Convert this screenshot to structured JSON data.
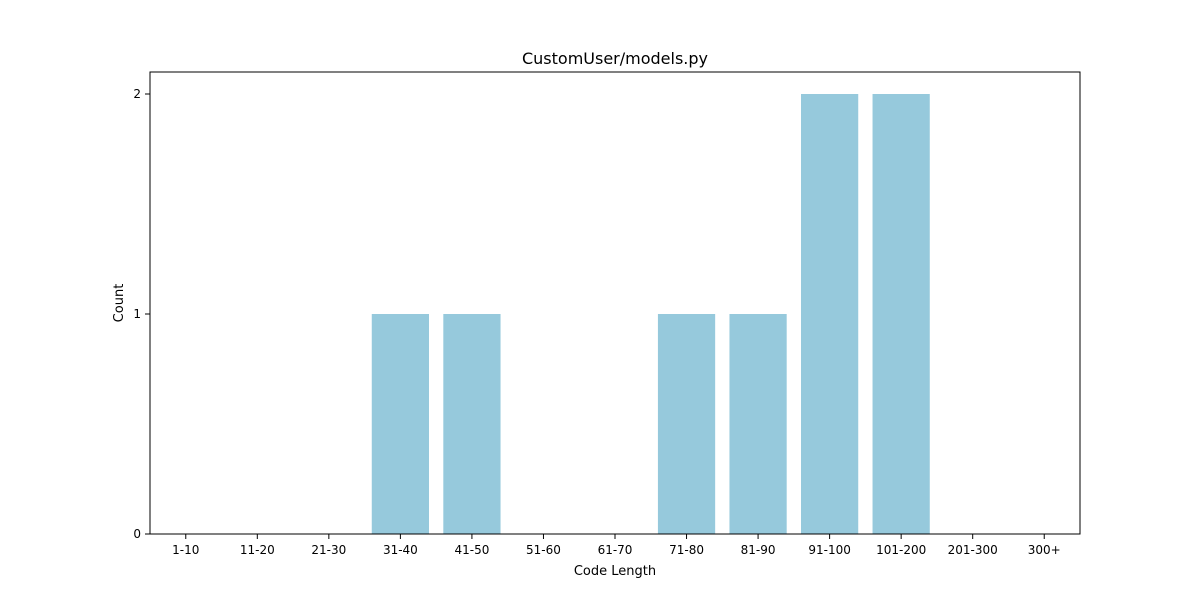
{
  "chart_data": {
    "type": "bar",
    "title": "CustomUser/models.py",
    "xlabel": "Code Length",
    "ylabel": "Count",
    "categories": [
      "1-10",
      "11-20",
      "21-30",
      "31-40",
      "41-50",
      "51-60",
      "61-70",
      "71-80",
      "81-90",
      "91-100",
      "101-200",
      "201-300",
      "300+"
    ],
    "values": [
      0,
      0,
      0,
      1,
      1,
      0,
      0,
      1,
      1,
      2,
      2,
      0,
      0
    ],
    "ylim": [
      0,
      2.1
    ],
    "yticks": [
      "0",
      "1",
      "2"
    ],
    "bar_color": "#96c9dc",
    "grid": false,
    "legend": "none"
  }
}
